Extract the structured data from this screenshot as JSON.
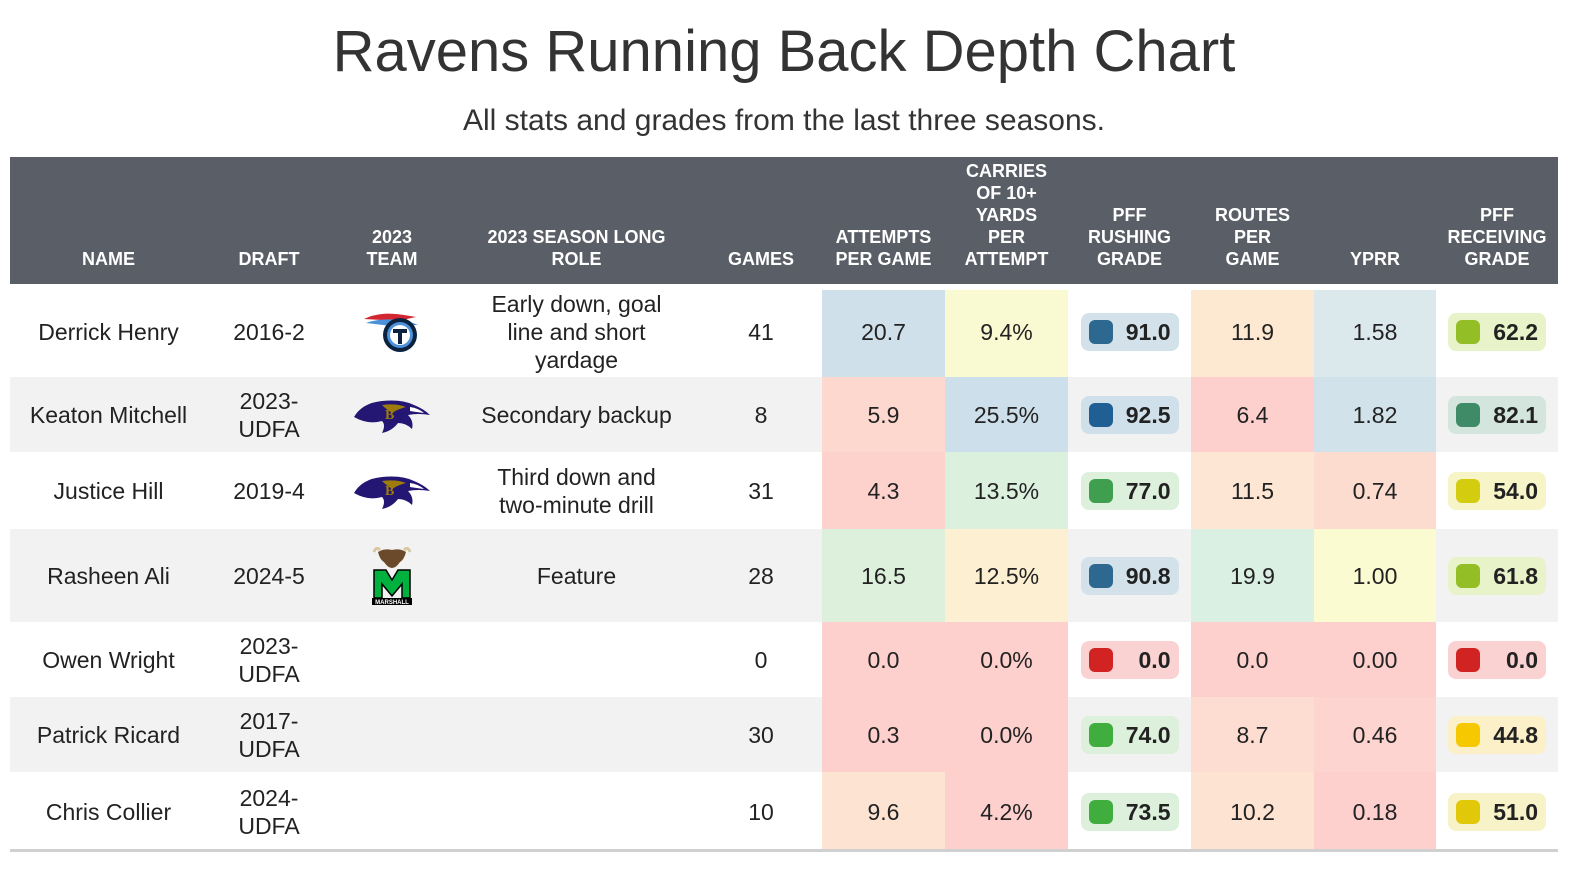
{
  "title": "Ravens Running Back Depth Chart",
  "subtitle": "All stats and grades from the last three seasons.",
  "headers": {
    "name": "NAME",
    "draft": "DRAFT",
    "team": "2023 TEAM",
    "role": "2023 SEASON LONG ROLE",
    "games": "GAMES",
    "attempts": "ATTEMPTS PER GAME",
    "carries": "CARRIES OF 10+ YARDS PER ATTEMPT",
    "rushing": "PFF RUSHING GRADE",
    "routes": "ROUTES PER GAME",
    "yprr": "YPRR",
    "receiving": "PFF RECEIVING GRADE"
  },
  "rows": [
    {
      "name": "Derrick Henry",
      "draft": "2016-2",
      "team_icon": "titans-logo",
      "role": "Early down, goal line and short yardage",
      "games": "41",
      "attempts": "20.7",
      "carries": "9.4%",
      "rushing": "91.0",
      "routes": "11.9",
      "yprr": "1.58",
      "receiving": "62.2",
      "colors": {
        "attempts": "#cfe0ea",
        "carries": "#fafad2",
        "rushing_bg": "#d3e2ea",
        "rushing_dot": "#2d6891",
        "routes": "#fde9d1",
        "yprr": "#dbe8ec",
        "receiving_bg": "#e8f3c9",
        "receiving_dot": "#93be26"
      }
    },
    {
      "name": "Keaton Mitchell",
      "draft": "2023-UDFA",
      "team_icon": "ravens-logo",
      "role": "Secondary backup",
      "games": "8",
      "attempts": "5.9",
      "carries": "25.5%",
      "rushing": "92.5",
      "routes": "6.4",
      "yprr": "1.82",
      "receiving": "82.1",
      "colors": {
        "attempts": "#fdd8cf",
        "carries": "#cddfea",
        "rushing_bg": "#d0e0ea",
        "rushing_dot": "#1f5f93",
        "routes": "#fdcfcd",
        "yprr": "#d1e2ea",
        "receiving_bg": "#d3e5dd",
        "receiving_dot": "#3f8a67"
      }
    },
    {
      "name": "Justice Hill",
      "draft": "2019-4",
      "team_icon": "ravens-logo",
      "role": "Third down and two-minute drill",
      "games": "31",
      "attempts": "4.3",
      "carries": "13.5%",
      "rushing": "77.0",
      "routes": "11.5",
      "yprr": "0.74",
      "receiving": "54.0",
      "colors": {
        "attempts": "#fdd2cd",
        "carries": "#dcf0de",
        "rushing_bg": "#dcf0dc",
        "rushing_dot": "#3f9f4f",
        "routes": "#fde6d3",
        "yprr": "#fddcd0",
        "receiving_bg": "#f7f5c8",
        "receiving_dot": "#d4cc0e"
      }
    },
    {
      "name": "Rasheen Ali",
      "draft": "2024-5",
      "team_icon": "marshall-logo",
      "role": "Feature",
      "games": "28",
      "attempts": "16.5",
      "carries": "12.5%",
      "rushing": "90.8",
      "routes": "19.9",
      "yprr": "1.00",
      "receiving": "61.8",
      "colors": {
        "attempts": "#dcf0dc",
        "carries": "#fdefd1",
        "rushing_bg": "#d3e2ea",
        "rushing_dot": "#2d6891",
        "routes": "#d9f0e3",
        "yprr": "#fbfbd1",
        "receiving_bg": "#e8f3c9",
        "receiving_dot": "#93be26"
      }
    },
    {
      "name": "Owen Wright",
      "draft": "2023-UDFA",
      "team_icon": "",
      "role": "",
      "games": "0",
      "attempts": "0.0",
      "carries": "0.0%",
      "rushing": "0.0",
      "routes": "0.0",
      "yprr": "0.00",
      "receiving": "0.0",
      "colors": {
        "attempts": "#fdcfcd",
        "carries": "#fdcfcd",
        "rushing_bg": "#fad2d2",
        "rushing_dot": "#d22323",
        "routes": "#fdcfcd",
        "yprr": "#fdcfcd",
        "receiving_bg": "#fad2d2",
        "receiving_dot": "#d22323"
      }
    },
    {
      "name": "Patrick Ricard",
      "draft": "2017-UDFA",
      "team_icon": "",
      "role": "",
      "games": "30",
      "attempts": "0.3",
      "carries": "0.0%",
      "rushing": "74.0",
      "routes": "8.7",
      "yprr": "0.46",
      "receiving": "44.8",
      "colors": {
        "attempts": "#fdcfcd",
        "carries": "#fdcfcd",
        "rushing_bg": "#dcf0dc",
        "rushing_dot": "#3fae3f",
        "routes": "#fdddd2",
        "yprr": "#fdd4cf",
        "receiving_bg": "#fbf0c8",
        "receiving_dot": "#f5c800"
      }
    },
    {
      "name": "Chris Collier",
      "draft": "2024-UDFA",
      "team_icon": "",
      "role": "",
      "games": "10",
      "attempts": "9.6",
      "carries": "4.2%",
      "rushing": "73.5",
      "routes": "10.2",
      "yprr": "0.18",
      "receiving": "51.0",
      "colors": {
        "attempts": "#fde3d2",
        "carries": "#fdd0cd",
        "rushing_bg": "#dcf0dc",
        "rushing_dot": "#3fae3f",
        "routes": "#fde3d2",
        "yprr": "#fdcfcd",
        "receiving_bg": "#f8f2c8",
        "receiving_dot": "#e1c90a"
      }
    }
  ]
}
